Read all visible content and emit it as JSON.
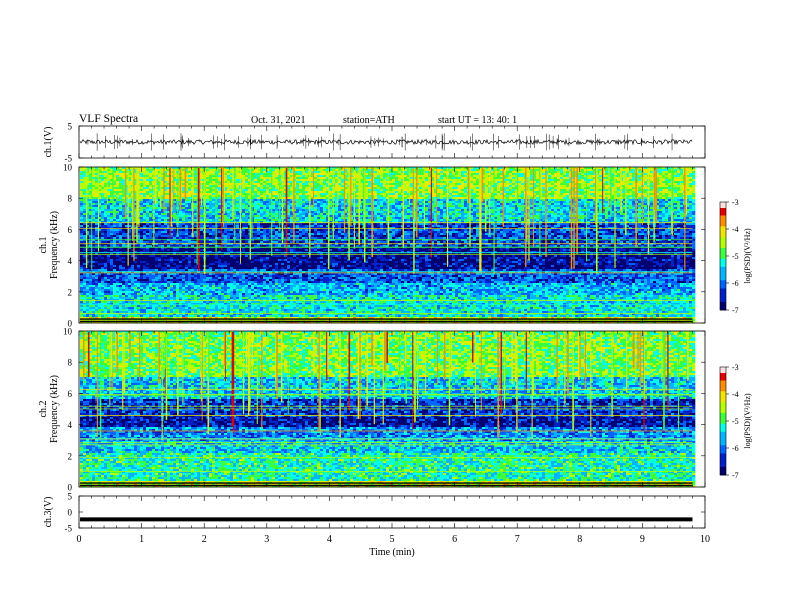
{
  "header": {
    "title": "VLF  Spectra",
    "date": "Oct. 31, 2021",
    "station": "station=ATH",
    "start": "start  UT  =    13: 40: 1"
  },
  "colors": {
    "colormap": [
      "#ffffff",
      "#c80000",
      "#ff5000",
      "#f0e600",
      "#3cff3c",
      "#00ffe6",
      "#0064ff",
      "#000090",
      "#000000"
    ],
    "trace": "#000000"
  },
  "chart_data": [
    {
      "type": "line",
      "name": "ch1-timeseries",
      "ylabel": "ch.1(V)",
      "ylim": [
        -5,
        5
      ],
      "yticks": [
        "5",
        "-5"
      ],
      "xlim": [
        0,
        10
      ],
      "baseline": 0,
      "noise_amplitude": 0.7,
      "spike_amplitude": 2
    },
    {
      "type": "heatmap",
      "name": "ch1-spectrogram",
      "ylabel": "ch.1\nFrequency (kHz)",
      "ylim": [
        0,
        10
      ],
      "yticks": [
        "0",
        "2",
        "4",
        "6",
        "8",
        "10"
      ],
      "xlim": [
        0,
        9.8
      ],
      "colorbar": {
        "label": "log(PSD)(V²/Hz)",
        "range": [
          -7,
          -3
        ],
        "ticks": [
          "-3",
          "-4",
          "-5",
          "-6",
          "-7"
        ]
      },
      "bands_khz": [
        {
          "from": 0,
          "to": 0.4,
          "level": -4.2
        },
        {
          "from": 0.4,
          "to": 1.8,
          "level": -5.3
        },
        {
          "from": 1.8,
          "to": 2.6,
          "level": -5.6
        },
        {
          "from": 2.6,
          "to": 3.4,
          "level": -6.1
        },
        {
          "from": 3.4,
          "to": 4.9,
          "level": -6.7
        },
        {
          "from": 4.9,
          "to": 6.4,
          "level": -6.2
        },
        {
          "from": 6.4,
          "to": 8.0,
          "level": -5.4
        },
        {
          "from": 8.0,
          "to": 10,
          "level": -4.6
        }
      ]
    },
    {
      "type": "heatmap",
      "name": "ch2-spectrogram",
      "ylabel": "ch.2\nFrequency (kHz)",
      "ylim": [
        0,
        10
      ],
      "yticks": [
        "0",
        "2",
        "4",
        "6",
        "8",
        "10"
      ],
      "xlim": [
        0,
        9.8
      ],
      "colorbar": {
        "label": "log(PSD)(V²/Hz)",
        "range": [
          -7,
          -3
        ],
        "ticks": [
          "-3",
          "-4",
          "-5",
          "-6",
          "-7"
        ]
      },
      "bands_khz": [
        {
          "from": 0,
          "to": 0.4,
          "level": -4.3
        },
        {
          "from": 0.4,
          "to": 2.2,
          "level": -5.1
        },
        {
          "from": 2.2,
          "to": 3.0,
          "level": -5.5
        },
        {
          "from": 3.0,
          "to": 3.8,
          "level": -5.8
        },
        {
          "from": 3.8,
          "to": 4.5,
          "level": -6.6
        },
        {
          "from": 4.5,
          "to": 5.7,
          "level": -6.3
        },
        {
          "from": 5.7,
          "to": 7.0,
          "level": -5.5
        },
        {
          "from": 7.0,
          "to": 10,
          "level": -4.7
        }
      ]
    },
    {
      "type": "line",
      "name": "ch3-timeseries",
      "ylabel": "ch.3(V)",
      "ylim": [
        -5,
        5
      ],
      "yticks": [
        "5",
        "0",
        "-5"
      ],
      "xlim": [
        0,
        10
      ],
      "xlabel": "Time  (min)",
      "xticks": [
        "0",
        "1",
        "2",
        "3",
        "4",
        "5",
        "6",
        "7",
        "8",
        "9",
        "10"
      ],
      "baseline": -2.3
    }
  ]
}
